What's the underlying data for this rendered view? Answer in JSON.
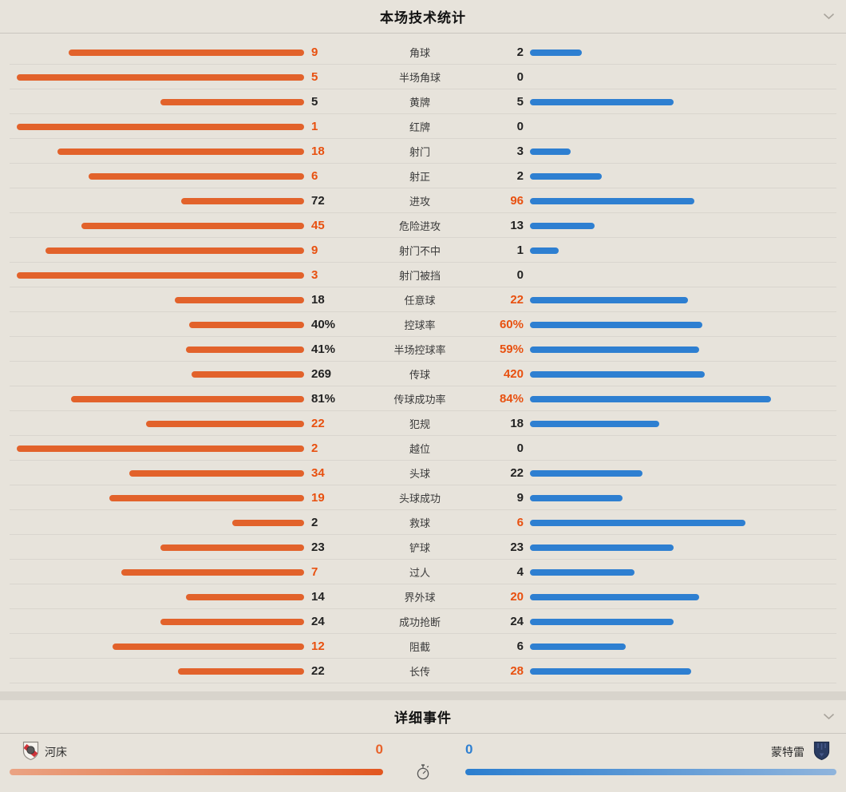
{
  "stats_section": {
    "title": "本场技术统计",
    "rows": [
      {
        "left": "9",
        "label": "角球",
        "right": "2"
      },
      {
        "left": "5",
        "label": "半场角球",
        "right": "0"
      },
      {
        "left": "5",
        "label": "黄牌",
        "right": "5"
      },
      {
        "left": "1",
        "label": "红牌",
        "right": "0"
      },
      {
        "left": "18",
        "label": "射门",
        "right": "3"
      },
      {
        "left": "6",
        "label": "射正",
        "right": "2"
      },
      {
        "left": "72",
        "label": "进攻",
        "right": "96"
      },
      {
        "left": "45",
        "label": "危险进攻",
        "right": "13"
      },
      {
        "left": "9",
        "label": "射门不中",
        "right": "1"
      },
      {
        "left": "3",
        "label": "射门被挡",
        "right": "0"
      },
      {
        "left": "18",
        "label": "任意球",
        "right": "22"
      },
      {
        "left": "40%",
        "label": "控球率",
        "right": "60%"
      },
      {
        "left": "41%",
        "label": "半场控球率",
        "right": "59%"
      },
      {
        "left": "269",
        "label": "传球",
        "right": "420"
      },
      {
        "left": "81%",
        "label": "传球成功率",
        "right": "84%"
      },
      {
        "left": "22",
        "label": "犯规",
        "right": "18"
      },
      {
        "left": "2",
        "label": "越位",
        "right": "0"
      },
      {
        "left": "34",
        "label": "头球",
        "right": "22"
      },
      {
        "left": "19",
        "label": "头球成功",
        "right": "9"
      },
      {
        "left": "2",
        "label": "救球",
        "right": "6"
      },
      {
        "left": "23",
        "label": "铲球",
        "right": "23"
      },
      {
        "left": "7",
        "label": "过人",
        "right": "4"
      },
      {
        "left": "14",
        "label": "界外球",
        "right": "20"
      },
      {
        "left": "24",
        "label": "成功抢断",
        "right": "24"
      },
      {
        "left": "12",
        "label": "阻截",
        "right": "6"
      },
      {
        "left": "22",
        "label": "长传",
        "right": "28"
      }
    ]
  },
  "events_section": {
    "title": "详细事件",
    "home_team": {
      "name": "河床",
      "score": "0"
    },
    "away_team": {
      "name": "蒙特雷",
      "score": "0"
    }
  },
  "colors": {
    "home_bar": "#e2622b",
    "away_bar": "#2e7fd1",
    "highlight_value": "#e8500f",
    "home_score": "#e8622a",
    "away_score": "#2e7fd1",
    "background": "#e7e3db"
  }
}
